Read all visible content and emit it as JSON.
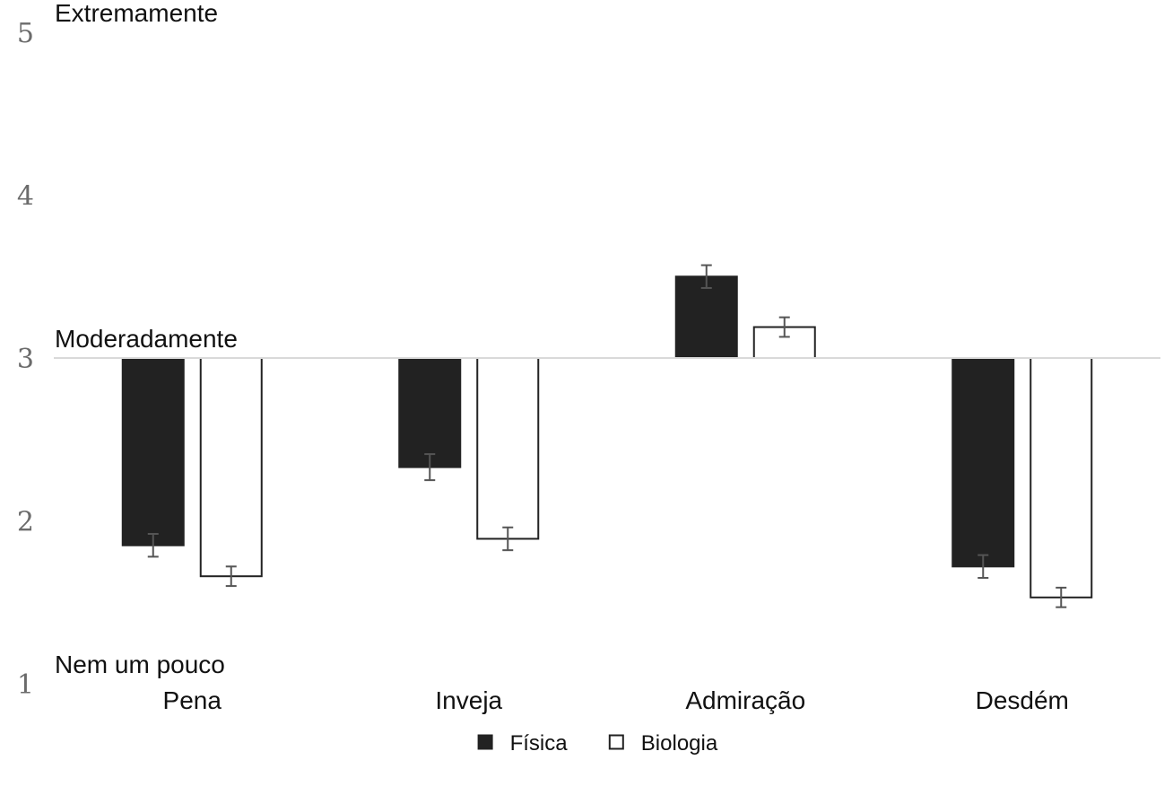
{
  "chart_data": {
    "type": "bar",
    "baseline": 3,
    "ylim": [
      1,
      5
    ],
    "yticks": [
      1,
      2,
      3,
      4,
      5
    ],
    "anchors": [
      {
        "value": 5,
        "label": "Extremamente"
      },
      {
        "value": 3,
        "label": "Moderadamente"
      },
      {
        "value": 1,
        "label": "Nem um pouco"
      }
    ],
    "categories": [
      "Pena",
      "Inveja",
      "Admiração",
      "Desdém"
    ],
    "series": [
      {
        "name": "Física",
        "color": "#222222",
        "values": [
          1.85,
          2.33,
          3.5,
          1.72
        ],
        "errors": [
          0.07,
          0.08,
          0.07,
          0.07
        ]
      },
      {
        "name": "Biologia",
        "color": "#ffffff",
        "values": [
          1.66,
          1.89,
          3.19,
          1.53
        ],
        "errors": [
          0.06,
          0.07,
          0.06,
          0.06
        ]
      }
    ],
    "grid": false,
    "legend": "bottom-center"
  }
}
